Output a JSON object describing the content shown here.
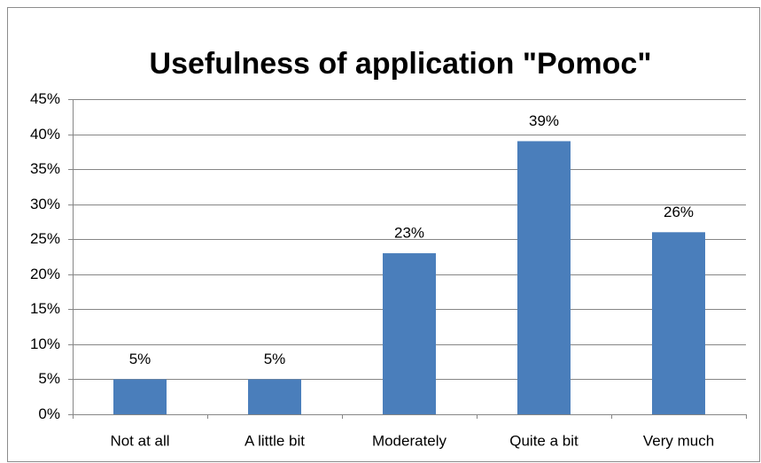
{
  "chart_data": {
    "type": "bar",
    "title": "Usefulness of application \"Pomoc\"",
    "categories": [
      "Not at all",
      "A little bit",
      "Moderately",
      "Quite a bit",
      "Very much"
    ],
    "values": [
      5,
      5,
      23,
      39,
      26
    ],
    "value_labels": [
      "5%",
      "5%",
      "23%",
      "39%",
      "26%"
    ],
    "color": "#4a7ebb",
    "ylim": [
      0,
      45
    ],
    "yticks": [
      {
        "value": 0,
        "label": "0%"
      },
      {
        "value": 5,
        "label": "5%"
      },
      {
        "value": 10,
        "label": "10%"
      },
      {
        "value": 15,
        "label": "15%"
      },
      {
        "value": 20,
        "label": "20%"
      },
      {
        "value": 25,
        "label": "25%"
      },
      {
        "value": 30,
        "label": "30%"
      },
      {
        "value": 35,
        "label": "35%"
      },
      {
        "value": 40,
        "label": "40%"
      },
      {
        "value": 45,
        "label": "45%"
      }
    ],
    "grid": true
  }
}
